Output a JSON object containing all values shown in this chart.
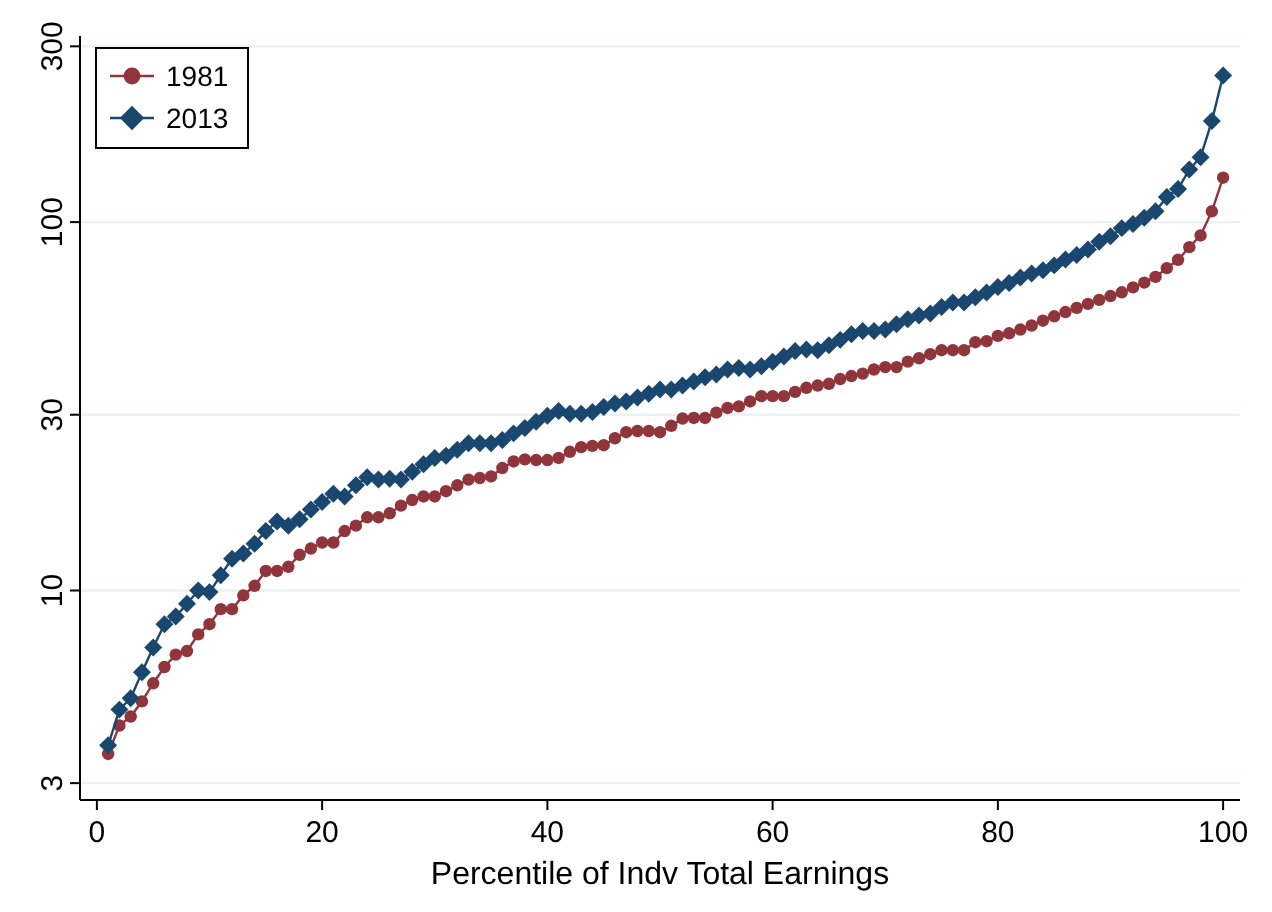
{
  "chart_data": {
    "type": "line",
    "xlabel": "Percentile of Indv Total Earnings",
    "x": [
      1,
      2,
      3,
      4,
      5,
      6,
      7,
      8,
      9,
      10,
      11,
      12,
      13,
      14,
      15,
      16,
      17,
      18,
      19,
      20,
      21,
      22,
      23,
      24,
      25,
      26,
      27,
      28,
      29,
      30,
      31,
      32,
      33,
      34,
      35,
      36,
      37,
      38,
      39,
      40,
      41,
      42,
      43,
      44,
      45,
      46,
      47,
      48,
      49,
      50,
      51,
      52,
      53,
      54,
      55,
      56,
      57,
      58,
      59,
      60,
      61,
      62,
      63,
      64,
      65,
      66,
      67,
      68,
      69,
      70,
      71,
      72,
      73,
      74,
      75,
      76,
      77,
      78,
      79,
      80,
      81,
      82,
      83,
      84,
      85,
      86,
      87,
      88,
      89,
      90,
      91,
      92,
      93,
      94,
      95,
      96,
      97,
      98,
      99,
      100
    ],
    "series": [
      {
        "name": "1981",
        "color": "#90353b",
        "marker": "circle",
        "values": [
          3.6,
          4.3,
          4.55,
          5.0,
          5.6,
          6.2,
          6.7,
          6.85,
          7.6,
          8.1,
          8.9,
          8.9,
          9.7,
          10.3,
          11.3,
          11.3,
          11.6,
          12.5,
          13.0,
          13.5,
          13.5,
          14.5,
          15.0,
          15.8,
          15.8,
          16.2,
          17.0,
          17.6,
          18.0,
          18.0,
          18.6,
          19.3,
          20.0,
          20.2,
          20.4,
          21.5,
          22.4,
          22.7,
          22.6,
          22.6,
          22.9,
          23.8,
          24.5,
          24.7,
          24.8,
          25.9,
          26.9,
          27.1,
          27.1,
          26.9,
          28.0,
          29.3,
          29.4,
          29.4,
          30.4,
          31.3,
          31.6,
          32.6,
          33.7,
          33.7,
          33.7,
          34.6,
          35.5,
          36.0,
          36.4,
          37.5,
          38.2,
          38.8,
          39.8,
          40.4,
          40.4,
          41.8,
          42.7,
          43.8,
          44.9,
          44.9,
          44.9,
          47.2,
          47.5,
          49.1,
          49.9,
          51.1,
          52.4,
          54,
          55.5,
          57,
          58.5,
          60,
          61.5,
          63,
          64.5,
          66.5,
          68.5,
          71,
          75,
          79,
          85.5,
          92,
          107,
          132
        ]
      },
      {
        "name": "2013",
        "color": "#1a476f",
        "marker": "diamond",
        "values": [
          3.8,
          4.75,
          5.1,
          6.0,
          7.0,
          8.1,
          8.5,
          9.2,
          10.0,
          9.9,
          11.0,
          12.2,
          12.6,
          13.4,
          14.5,
          15.4,
          15.0,
          15.6,
          16.6,
          17.4,
          18.3,
          18.0,
          19.3,
          20.3,
          20.0,
          20.1,
          20.0,
          21.0,
          22.0,
          22.9,
          23.2,
          24.1,
          25.1,
          25.1,
          25.1,
          25.6,
          26.7,
          27.6,
          28.7,
          29.8,
          30.7,
          30.2,
          30.2,
          30.5,
          31.5,
          32.2,
          32.6,
          33.4,
          34.2,
          35.1,
          35.1,
          36.0,
          36.9,
          37.9,
          38.6,
          39.8,
          40.2,
          39.8,
          40.6,
          41.8,
          43.2,
          44.7,
          45.1,
          44.9,
          46.3,
          47.9,
          49.6,
          50.6,
          50.6,
          51.1,
          52.8,
          54.5,
          55.8,
          56.5,
          58.8,
          60.5,
          60.5,
          62.5,
          64.4,
          66.7,
          68.3,
          70.7,
          72.5,
          74.0,
          76.3,
          79.1,
          81.4,
          84.3,
          88.4,
          91.5,
          96.3,
          98.8,
          102.8,
          107,
          117,
          123,
          139,
          150,
          188,
          250
        ]
      }
    ],
    "xlim": [
      -1.5,
      101.5
    ],
    "xticks": [
      0,
      20,
      40,
      60,
      80,
      100
    ],
    "ylim": [
      2.7,
      320
    ],
    "yticks": [
      3,
      10,
      30,
      100,
      300
    ],
    "log": "y",
    "grid": "y",
    "legend": "top left",
    "line_style": "solid"
  }
}
